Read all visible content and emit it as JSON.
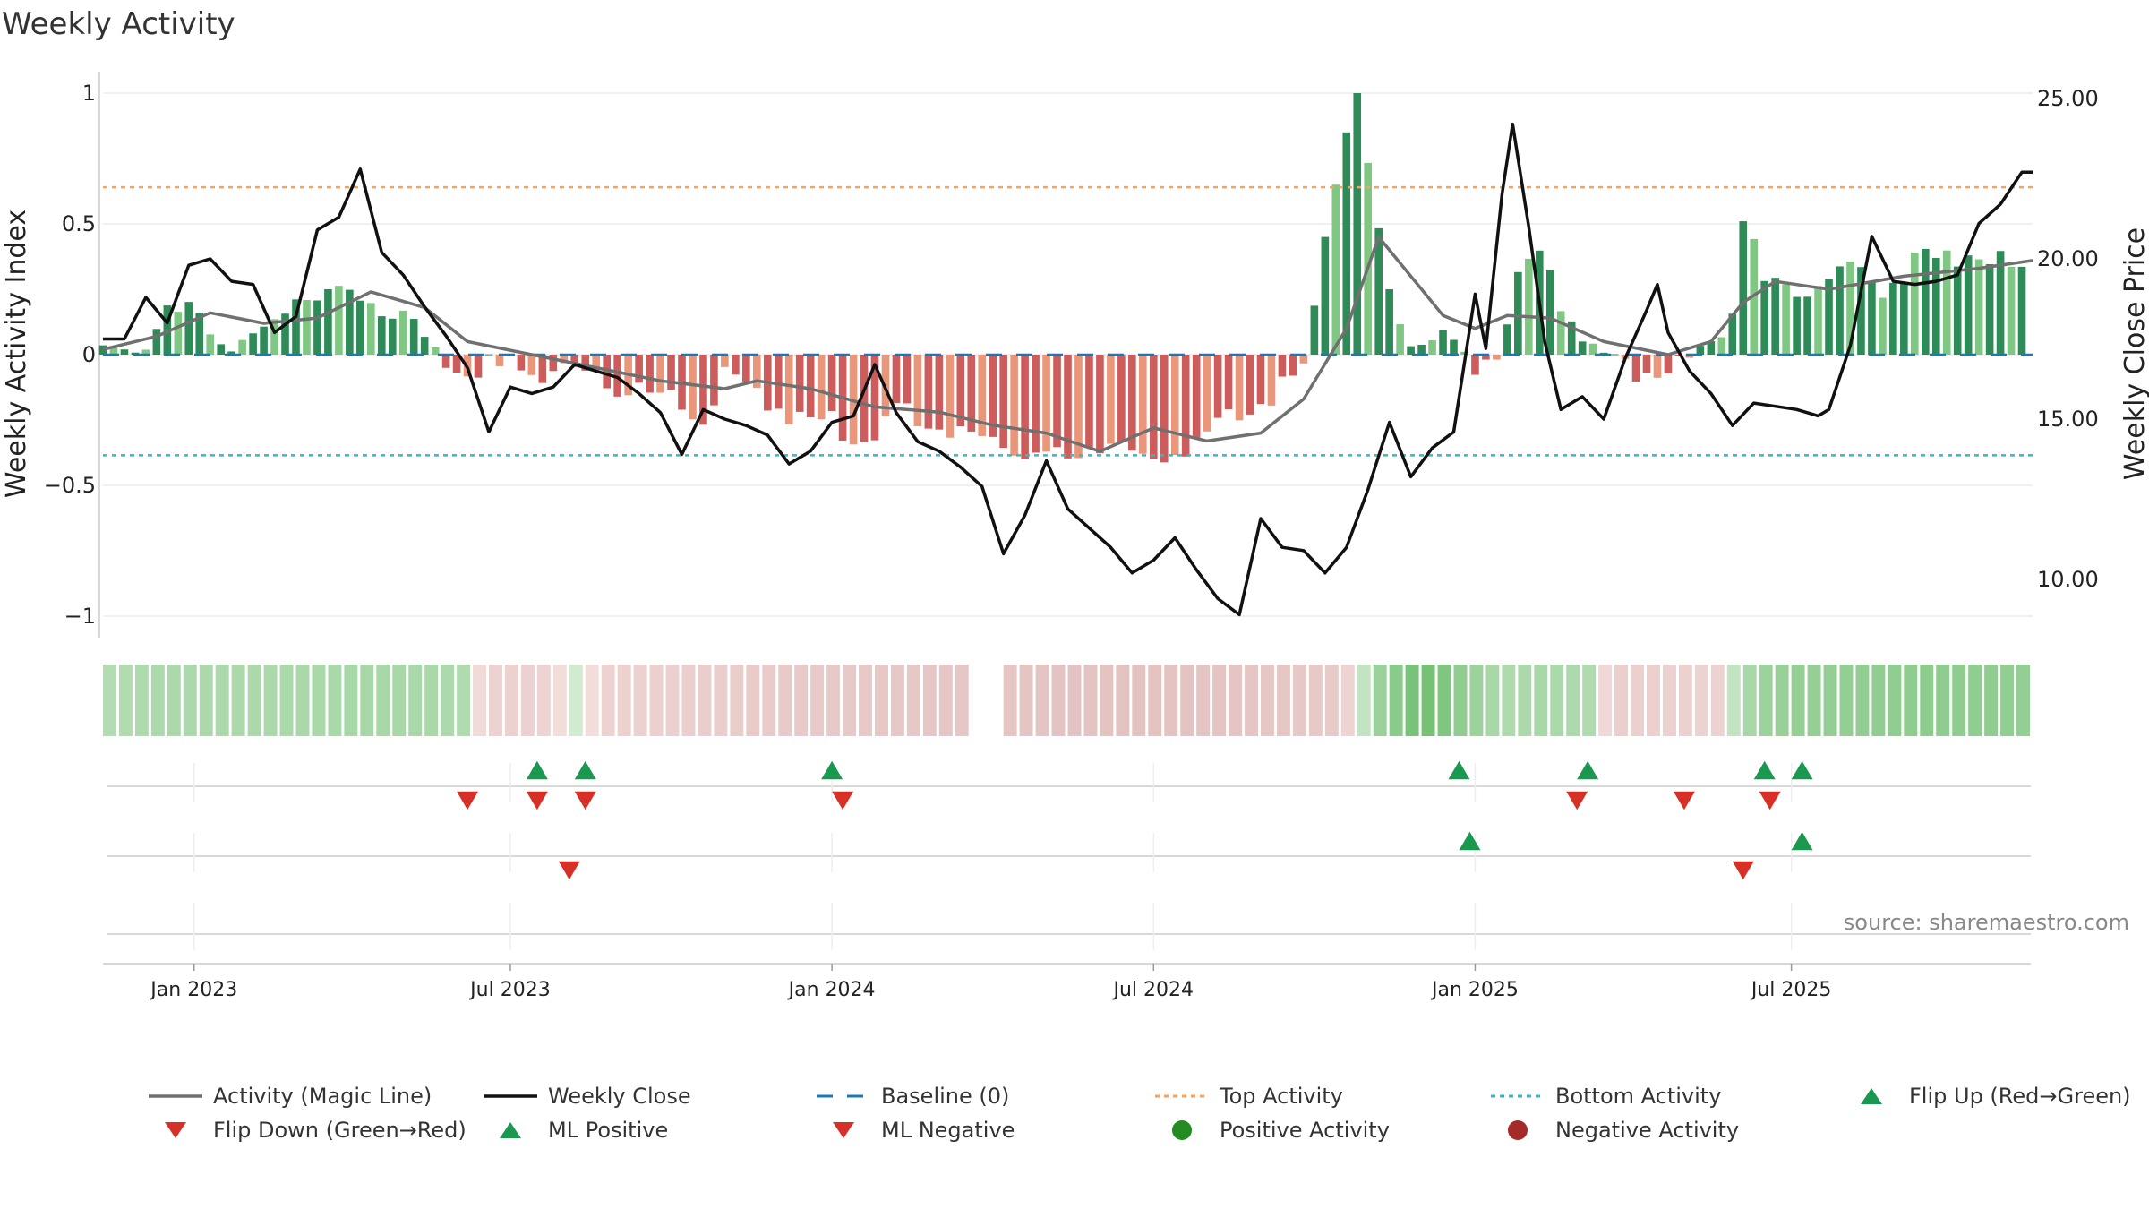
{
  "chart_data": {
    "type": "bar",
    "title": "Weekly Activity",
    "ylabel_left": "Weekly Activity Index",
    "ylabel_right": "Weekly Close Price",
    "ylim_left": [
      -1.1,
      1.1
    ],
    "ylim_right": [
      7.5,
      26
    ],
    "left_ticks": [
      "1",
      "0.5",
      "0",
      "−0.5",
      "−1"
    ],
    "left_tick_values": [
      1,
      0.5,
      0,
      -0.5,
      -1
    ],
    "right_ticks": [
      "25.00",
      "20.00",
      "15.00",
      "10.00"
    ],
    "right_tick_values": [
      25,
      20,
      15,
      10
    ],
    "x_ticks": [
      "Jan 2023",
      "Jul 2023",
      "Jan 2024",
      "Jul 2024",
      "Jan 2025",
      "Jul 2025"
    ],
    "x_tick_weeks": [
      17,
      76,
      136,
      196,
      256,
      315
    ],
    "num_weeks": 360,
    "top_activity": 0.64,
    "bottom_activity": -0.385,
    "colors": {
      "strong_pos": "#2e8b57",
      "weak_pos": "#81c784",
      "strong_neg": "#cd5c5c",
      "weak_neg": "#e9967a",
      "magic_line": "#707070",
      "weekly_close": "#111111",
      "baseline": "#1f77b4",
      "top_line": "#f4a460",
      "bottom_line": "#20c0d0",
      "marker_up": "#1a9850",
      "marker_down": "#d73027",
      "pos_dot": "#228b22",
      "neg_dot": "#a52a2a"
    },
    "activity_anchors": [
      [
        0,
        0.02
      ],
      [
        4,
        0.05
      ],
      [
        8,
        0.09
      ],
      [
        12,
        0.17
      ],
      [
        16,
        0.2
      ],
      [
        20,
        0.14
      ],
      [
        24,
        0.08
      ],
      [
        28,
        0.06
      ],
      [
        32,
        0.12
      ],
      [
        36,
        0.27
      ],
      [
        40,
        0.27
      ],
      [
        44,
        0.26
      ],
      [
        48,
        0.28
      ],
      [
        52,
        0.2
      ],
      [
        56,
        0.16
      ],
      [
        60,
        0.08
      ],
      [
        64,
        0.02
      ],
      [
        68,
        -0.03
      ],
      [
        72,
        -0.02
      ],
      [
        76,
        -0.03
      ],
      [
        80,
        -0.04
      ],
      [
        84,
        -0.03
      ],
      [
        88,
        -0.05
      ],
      [
        92,
        -0.07
      ],
      [
        96,
        -0.1
      ],
      [
        100,
        -0.13
      ],
      [
        104,
        -0.14
      ],
      [
        108,
        -0.17
      ],
      [
        112,
        -0.2
      ],
      [
        116,
        -0.06
      ],
      [
        120,
        -0.12
      ],
      [
        124,
        -0.16
      ],
      [
        128,
        -0.2
      ],
      [
        132,
        -0.22
      ],
      [
        136,
        -0.24
      ],
      [
        140,
        -0.27
      ],
      [
        144,
        -0.3
      ],
      [
        148,
        -0.19
      ],
      [
        152,
        -0.2
      ],
      [
        156,
        -0.24
      ],
      [
        160,
        -0.26
      ],
      [
        164,
        -0.29
      ],
      [
        168,
        -0.3
      ],
      [
        172,
        -0.33
      ],
      [
        176,
        -0.35
      ],
      [
        180,
        -0.38
      ],
      [
        184,
        -0.33
      ],
      [
        188,
        -0.31
      ],
      [
        192,
        -0.35
      ],
      [
        196,
        -0.38
      ],
      [
        200,
        -0.35
      ],
      [
        204,
        -0.3
      ],
      [
        208,
        -0.26
      ],
      [
        212,
        -0.2
      ],
      [
        216,
        -0.15
      ],
      [
        220,
        -0.1
      ],
      [
        224,
        -0.02
      ],
      [
        228,
        0.45
      ],
      [
        232,
        0.85
      ],
      [
        234,
        1.0
      ],
      [
        237,
        0.6
      ],
      [
        240,
        0.25
      ],
      [
        244,
        0.06
      ],
      [
        248,
        0.08
      ],
      [
        252,
        0.06
      ],
      [
        256,
        -0.02
      ],
      [
        260,
        0.05
      ],
      [
        264,
        0.32
      ],
      [
        268,
        0.38
      ],
      [
        272,
        0.22
      ],
      [
        276,
        0.1
      ],
      [
        280,
        0.02
      ],
      [
        284,
        -0.04
      ],
      [
        288,
        -0.03
      ],
      [
        292,
        -0.02
      ],
      [
        296,
        -0.01
      ],
      [
        300,
        0.05
      ],
      [
        304,
        0.2
      ],
      [
        306,
        0.58
      ],
      [
        310,
        0.3
      ],
      [
        316,
        0.25
      ],
      [
        320,
        0.3
      ],
      [
        326,
        0.38
      ],
      [
        332,
        0.28
      ],
      [
        338,
        0.38
      ],
      [
        344,
        0.4
      ],
      [
        350,
        0.42
      ],
      [
        356,
        0.36
      ],
      [
        360,
        0.34
      ]
    ],
    "magic_line_anchors": [
      [
        0,
        0.02
      ],
      [
        10,
        0.07
      ],
      [
        20,
        0.16
      ],
      [
        30,
        0.12
      ],
      [
        40,
        0.14
      ],
      [
        50,
        0.24
      ],
      [
        60,
        0.18
      ],
      [
        68,
        0.05
      ],
      [
        80,
        0.0
      ],
      [
        92,
        -0.05
      ],
      [
        104,
        -0.1
      ],
      [
        116,
        -0.13
      ],
      [
        122,
        -0.1
      ],
      [
        132,
        -0.13
      ],
      [
        144,
        -0.2
      ],
      [
        156,
        -0.22
      ],
      [
        166,
        -0.27
      ],
      [
        176,
        -0.3
      ],
      [
        186,
        -0.37
      ],
      [
        196,
        -0.28
      ],
      [
        206,
        -0.33
      ],
      [
        216,
        -0.3
      ],
      [
        224,
        -0.17
      ],
      [
        232,
        0.1
      ],
      [
        238,
        0.45
      ],
      [
        244,
        0.3
      ],
      [
        250,
        0.15
      ],
      [
        256,
        0.1
      ],
      [
        262,
        0.15
      ],
      [
        270,
        0.14
      ],
      [
        280,
        0.05
      ],
      [
        292,
        0.0
      ],
      [
        300,
        0.05
      ],
      [
        306,
        0.2
      ],
      [
        312,
        0.28
      ],
      [
        322,
        0.25
      ],
      [
        336,
        0.3
      ],
      [
        350,
        0.33
      ],
      [
        360,
        0.36
      ]
    ],
    "close_anchors": [
      [
        0,
        17.5
      ],
      [
        4,
        17.5
      ],
      [
        8,
        18.8
      ],
      [
        12,
        18
      ],
      [
        16,
        19.8
      ],
      [
        20,
        20
      ],
      [
        24,
        19.3
      ],
      [
        28,
        19.2
      ],
      [
        32,
        17.7
      ],
      [
        36,
        18.2
      ],
      [
        40,
        20.9
      ],
      [
        44,
        21.3
      ],
      [
        48,
        22.8
      ],
      [
        52,
        20.2
      ],
      [
        56,
        19.5
      ],
      [
        60,
        18.5
      ],
      [
        64,
        17.6
      ],
      [
        68,
        16.6
      ],
      [
        72,
        14.6
      ],
      [
        76,
        16.0
      ],
      [
        80,
        15.8
      ],
      [
        84,
        16
      ],
      [
        88,
        16.7
      ],
      [
        92,
        16.5
      ],
      [
        96,
        16.3
      ],
      [
        100,
        15.8
      ],
      [
        104,
        15.2
      ],
      [
        108,
        13.9
      ],
      [
        112,
        15.3
      ],
      [
        116,
        15.0
      ],
      [
        120,
        14.8
      ],
      [
        124,
        14.5
      ],
      [
        128,
        13.6
      ],
      [
        132,
        14.0
      ],
      [
        136,
        14.9
      ],
      [
        140,
        15.1
      ],
      [
        144,
        16.7
      ],
      [
        148,
        15.2
      ],
      [
        152,
        14.3
      ],
      [
        156,
        14.0
      ],
      [
        160,
        13.5
      ],
      [
        164,
        12.9
      ],
      [
        168,
        10.8
      ],
      [
        172,
        12.0
      ],
      [
        176,
        13.7
      ],
      [
        180,
        12.2
      ],
      [
        184,
        11.6
      ],
      [
        188,
        11.0
      ],
      [
        192,
        10.2
      ],
      [
        196,
        10.6
      ],
      [
        200,
        11.3
      ],
      [
        204,
        10.3
      ],
      [
        208,
        9.4
      ],
      [
        212,
        8.9
      ],
      [
        216,
        11.9
      ],
      [
        220,
        11.0
      ],
      [
        224,
        10.9
      ],
      [
        228,
        10.2
      ],
      [
        232,
        11.0
      ],
      [
        236,
        12.8
      ],
      [
        240,
        14.9
      ],
      [
        244,
        13.2
      ],
      [
        248,
        14.1
      ],
      [
        252,
        14.6
      ],
      [
        256,
        18.9
      ],
      [
        258,
        17.2
      ],
      [
        261,
        22.0
      ],
      [
        263,
        24.2
      ],
      [
        266,
        21.0
      ],
      [
        269,
        17.4
      ],
      [
        272,
        15.3
      ],
      [
        276,
        15.7
      ],
      [
        280,
        15.0
      ],
      [
        284,
        16.9
      ],
      [
        288,
        18.4
      ],
      [
        290,
        19.2
      ],
      [
        292,
        17.7
      ],
      [
        296,
        16.5
      ],
      [
        300,
        15.8
      ],
      [
        304,
        14.8
      ],
      [
        308,
        15.5
      ],
      [
        312,
        15.4
      ],
      [
        316,
        15.3
      ],
      [
        320,
        15.1
      ],
      [
        322,
        15.3
      ],
      [
        326,
        17.3
      ],
      [
        330,
        20.7
      ],
      [
        334,
        19.3
      ],
      [
        338,
        19.2
      ],
      [
        342,
        19.3
      ],
      [
        346,
        19.5
      ],
      [
        350,
        21.1
      ],
      [
        354,
        21.7
      ],
      [
        358,
        22.7
      ],
      [
        360,
        22.7
      ]
    ],
    "strip_anchors": [
      [
        0,
        0.28
      ],
      [
        10,
        0.32
      ],
      [
        20,
        0.33
      ],
      [
        30,
        0.33
      ],
      [
        40,
        0.34
      ],
      [
        50,
        0.35
      ],
      [
        60,
        0.34
      ],
      [
        66,
        0.3
      ],
      [
        70,
        -0.2
      ],
      [
        80,
        -0.22
      ],
      [
        88,
        0.12
      ],
      [
        92,
        -0.2
      ],
      [
        100,
        -0.22
      ],
      [
        110,
        -0.25
      ],
      [
        120,
        -0.28
      ],
      [
        128,
        -0.3
      ],
      [
        136,
        -0.32
      ],
      [
        145,
        -0.34
      ],
      [
        160,
        -0.36
      ],
      [
        170,
        -0.38
      ],
      [
        180,
        -0.4
      ],
      [
        190,
        -0.42
      ],
      [
        200,
        -0.4
      ],
      [
        210,
        -0.38
      ],
      [
        220,
        -0.35
      ],
      [
        230,
        -0.3
      ],
      [
        236,
        0.4
      ],
      [
        240,
        0.55
      ],
      [
        244,
        0.7
      ],
      [
        248,
        0.65
      ],
      [
        252,
        0.5
      ],
      [
        256,
        0.4
      ],
      [
        260,
        0.3
      ],
      [
        264,
        0.33
      ],
      [
        268,
        0.35
      ],
      [
        272,
        0.32
      ],
      [
        276,
        0.3
      ],
      [
        280,
        -0.25
      ],
      [
        290,
        -0.22
      ],
      [
        300,
        -0.2
      ],
      [
        304,
        0.3
      ],
      [
        310,
        0.45
      ],
      [
        320,
        0.48
      ],
      [
        330,
        0.5
      ],
      [
        340,
        0.52
      ],
      [
        350,
        0.5
      ],
      [
        360,
        0.48
      ]
    ],
    "flip_up_weeks": [
      81,
      90,
      136,
      253,
      277,
      310,
      317
    ],
    "flip_down_weeks": [
      68,
      81,
      90,
      138,
      275,
      295,
      311
    ],
    "ml_positive_weeks": [
      255,
      317
    ],
    "ml_negative_weeks": [
      87,
      306
    ],
    "legend": [
      {
        "label": "Activity (Magic Line)",
        "symbol": "line-solid-gray"
      },
      {
        "label": "Weekly Close",
        "symbol": "line-solid-black"
      },
      {
        "label": "Baseline (0)",
        "symbol": "line-dashed-blue"
      },
      {
        "label": "Top Activity",
        "symbol": "line-dotted-orange"
      },
      {
        "label": "Bottom Activity",
        "symbol": "line-dotted-cyan"
      },
      {
        "label": "Flip Up (Red→Green)",
        "symbol": "triangle-up-green"
      },
      {
        "label": "Flip Down (Green→Red)",
        "symbol": "triangle-down-red"
      },
      {
        "label": "ML Positive",
        "symbol": "triangle-up-green"
      },
      {
        "label": "ML Negative",
        "symbol": "triangle-down-red"
      },
      {
        "label": "Positive Activity",
        "symbol": "dot-green"
      },
      {
        "label": "Negative Activity",
        "symbol": "dot-darkred"
      }
    ],
    "source": "source: sharemaestro.com"
  }
}
